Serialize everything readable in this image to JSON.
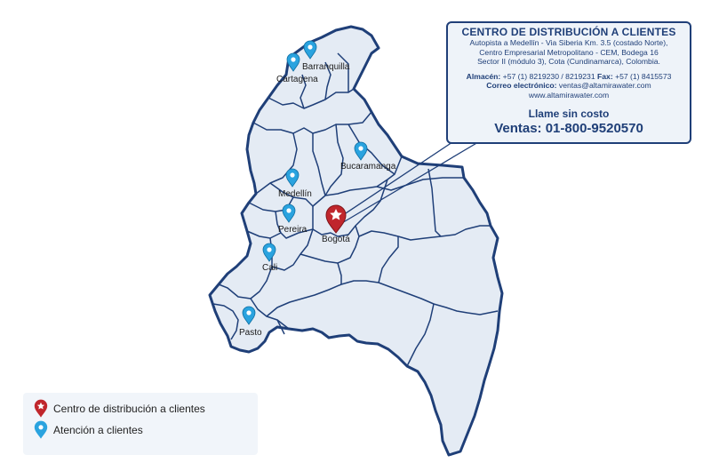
{
  "info_box": {
    "title": "CENTRO DE DISTRIBUCIÓN A CLIENTES",
    "address_lines": [
      "Autopista a Medellín - Via Siberia Km. 3.5 (costado Norte),",
      "Centro Empresarial Metropolitano - CEM, Bodega 16",
      "Sector II (módulo 3), Cota (Cundinamarca), Colombia."
    ],
    "almacen_label": "Almacén:",
    "almacen_value": " +57 (1) 8219230 / 8219231 ",
    "fax_label": "Fax:",
    "fax_value": " +57 (1) 8415573",
    "email_label": "Correo electrónico:",
    "email_value": " ventas@altamirawater.com",
    "website": "www.altamirawater.com",
    "call_title": "Llame sin costo",
    "sales_line": "Ventas: 01-800-9520570"
  },
  "cities": {
    "barranquilla": "Barranquilla",
    "cartagena": "Cartagena",
    "bucaramanga": "Bucaramanga",
    "medellin": "Medellín",
    "pereira": "Pereira",
    "bogota": "Bogotá",
    "cali": "Cali",
    "pasto": "Pasto"
  },
  "legend": {
    "distribution": "Centro de distribución a clientes",
    "attention": "Atención a clientes"
  },
  "colors": {
    "land": "#e4ebf4",
    "border": "#1f3f78",
    "blue_pin": "#2aa3df",
    "red_pin": "#c0262c"
  }
}
